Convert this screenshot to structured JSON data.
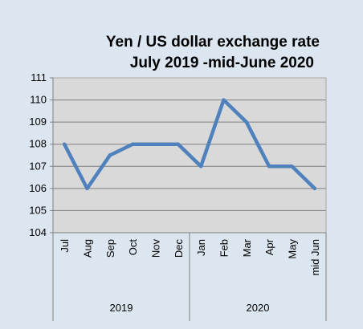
{
  "chart_data": {
    "type": "line",
    "title_lines": [
      "Yen / US dollar exchange rate",
      "July 2019  -mid-June 2020"
    ],
    "categories": [
      "Jul",
      "Aug",
      "Sep",
      "Oct",
      "Nov",
      "Dec",
      "Jan",
      "Feb",
      "Mar",
      "Apr",
      "May",
      "mid Jun"
    ],
    "groups": [
      {
        "label": "2019",
        "count": 6
      },
      {
        "label": "2020",
        "count": 6
      }
    ],
    "series": [
      {
        "values": [
          108,
          106,
          107.5,
          108,
          108,
          108,
          107,
          110,
          109,
          107,
          107,
          106
        ]
      }
    ],
    "yticks": [
      104,
      105,
      106,
      107,
      108,
      109,
      110,
      111
    ],
    "ylim": [
      104,
      111
    ],
    "grid": true,
    "legend": "none",
    "colors": {
      "line": "#4f81bd",
      "plot_background": "#d9d9d9",
      "chart_background": "#dce6f1",
      "gridline": "#7f7f7f"
    }
  }
}
